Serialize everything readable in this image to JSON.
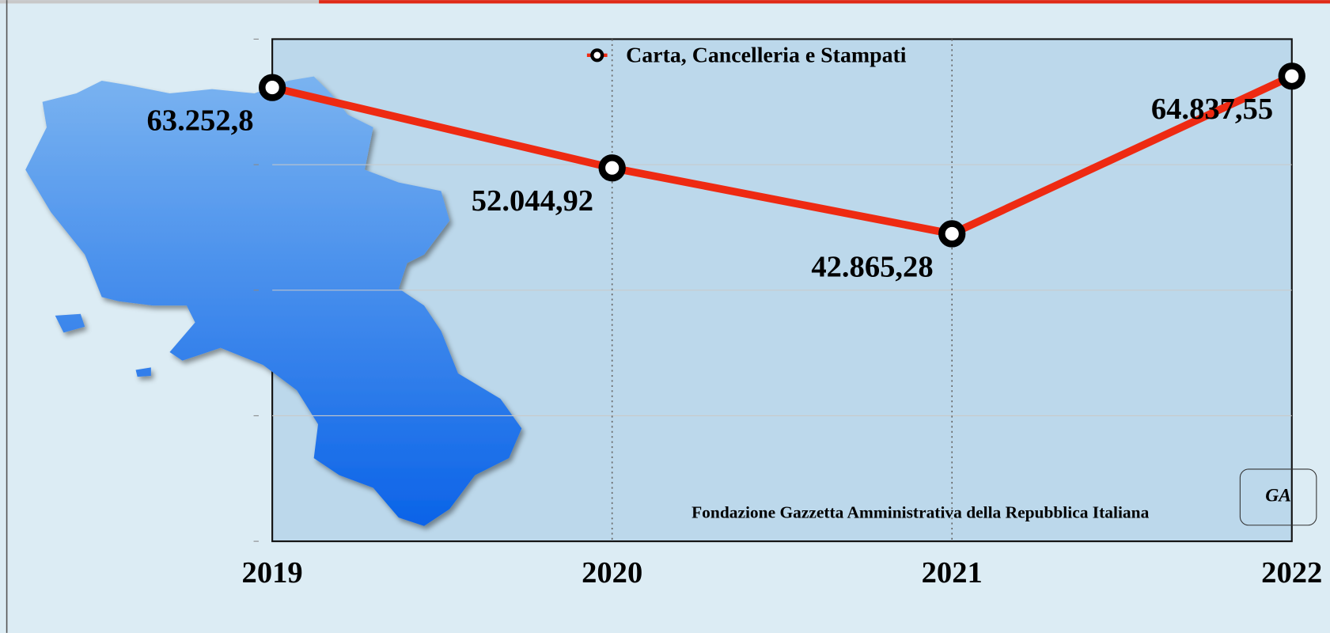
{
  "chart_data": {
    "type": "line",
    "categories": [
      "2019",
      "2020",
      "2021",
      "2022"
    ],
    "series": [
      {
        "name": "Carta, Cancelleria e Stampati",
        "color": "#ee2a12",
        "values": [
          63252.8,
          52044.92,
          42865.28,
          64837.55
        ],
        "value_labels": [
          "63.252,8",
          "52.044,92",
          "42.865,28",
          "64.837,55"
        ]
      }
    ],
    "ylim": [
      0,
      70000
    ],
    "yticks": [
      0,
      17500,
      35000,
      52500,
      70000
    ],
    "grid": true,
    "legend": "top",
    "footer": "Fondazione Gazzetta Amministrativa della Repubblica Italiana",
    "logo": "GA"
  }
}
